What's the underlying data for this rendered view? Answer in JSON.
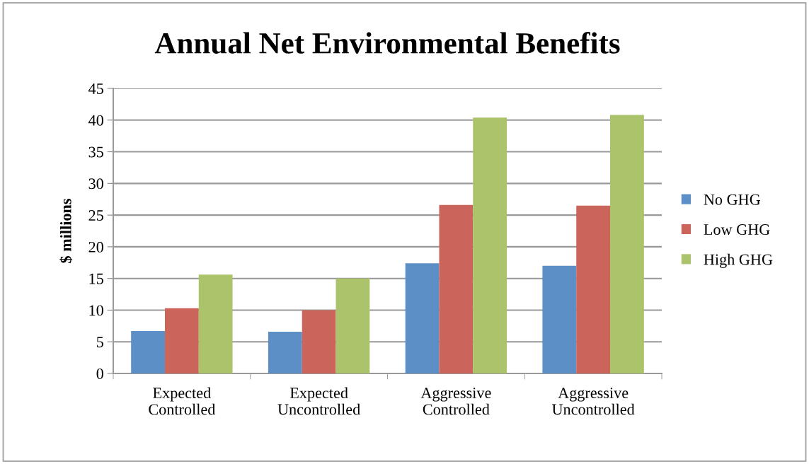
{
  "chart_data": {
    "type": "bar",
    "title": "Annual Net Environmental Benefits",
    "ylabel": "$ millions",
    "categories": [
      "Expected\nControlled",
      "Expected\nUncontrolled",
      "Aggressive\nControlled",
      "Aggressive\nUncontrolled"
    ],
    "series": [
      {
        "name": "No GHG",
        "color": "#5b8fc5",
        "values": [
          6.7,
          6.6,
          17.4,
          17.0
        ]
      },
      {
        "name": "Low GHG",
        "color": "#cb645a",
        "values": [
          10.3,
          10.0,
          26.6,
          26.5
        ]
      },
      {
        "name": "High GHG",
        "color": "#abc36a",
        "values": [
          15.6,
          15.0,
          40.4,
          40.8
        ]
      }
    ],
    "ylim": [
      0,
      45
    ],
    "yticks": [
      0,
      5,
      10,
      15,
      20,
      25,
      30,
      35,
      40,
      45
    ],
    "grid": "y",
    "legend": "right"
  }
}
